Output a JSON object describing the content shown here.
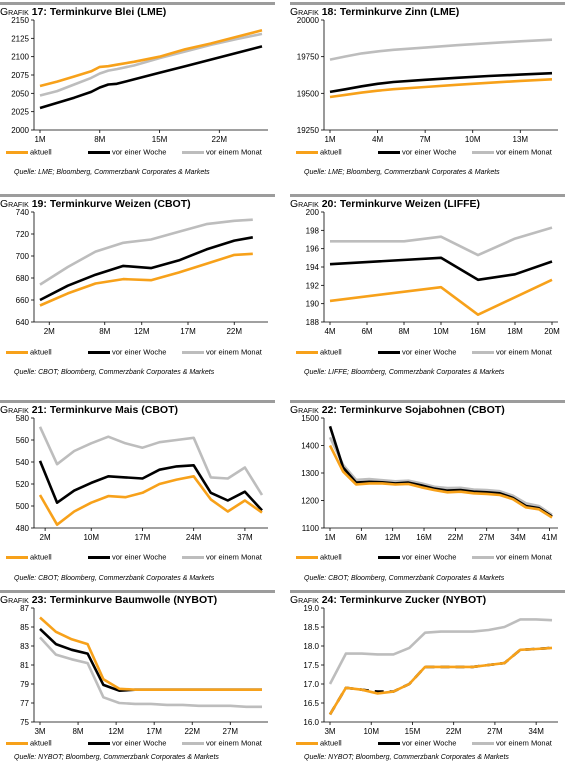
{
  "chart_data": [
    {
      "type": "line",
      "num": "17",
      "title_prefix": "Grafik",
      "title": "Terminkurve Blei (LME)",
      "source": "Quelle: LME; Bloomberg, Commerzbank Corporates & Markets",
      "categories": [
        "1M",
        "8M",
        "15M",
        "22M"
      ],
      "xrange": [
        1,
        27
      ],
      "xticks": [
        1,
        8,
        15,
        22
      ],
      "ylim": [
        2000,
        2150
      ],
      "yticks": [
        2000,
        2025,
        2050,
        2075,
        2100,
        2125,
        2150
      ],
      "series": [
        {
          "name": "aktuell",
          "color": "#f7a11a",
          "x": [
            1,
            3,
            5,
            7,
            8,
            9,
            10,
            12,
            15,
            18,
            21,
            24,
            27
          ],
          "values": [
            2060,
            2066,
            2073,
            2080,
            2086,
            2087,
            2089,
            2093,
            2100,
            2110,
            2118,
            2127,
            2136
          ]
        },
        {
          "name": "vor einer Woche",
          "color": "#000000",
          "x": [
            1,
            3,
            5,
            7,
            8,
            9,
            10,
            12,
            15,
            18,
            21,
            24,
            27
          ],
          "values": [
            2030,
            2037,
            2044,
            2052,
            2058,
            2062,
            2063,
            2069,
            2078,
            2087,
            2096,
            2105,
            2114
          ]
        },
        {
          "name": "vor einem Monat",
          "color": "#bdbdbd",
          "x": [
            1,
            3,
            5,
            7,
            8,
            9,
            10,
            12,
            15,
            18,
            21,
            24,
            27
          ],
          "values": [
            2047,
            2053,
            2062,
            2071,
            2077,
            2081,
            2083,
            2088,
            2098,
            2107,
            2116,
            2124,
            2131
          ]
        }
      ],
      "xlabel": "",
      "ylabel": "",
      "legend": "bottom"
    },
    {
      "type": "line",
      "num": "18",
      "title_prefix": "Grafik",
      "title": "Terminkurve Zinn (LME)",
      "source": "Quelle: LME; Bloomberg, Commerzbank Corporates & Markets",
      "categories": [
        "1M",
        "4M",
        "7M",
        "10M",
        "13M"
      ],
      "xrange": [
        1,
        15
      ],
      "xticks": [
        1,
        4,
        7,
        10,
        13
      ],
      "ylim": [
        19250,
        20000
      ],
      "yticks": [
        19250,
        19500,
        19750,
        20000
      ],
      "series": [
        {
          "name": "aktuell",
          "color": "#f7a11a",
          "x": [
            1,
            2,
            3,
            4,
            5,
            7,
            9,
            11,
            13,
            15
          ],
          "values": [
            19475,
            19490,
            19505,
            19518,
            19528,
            19543,
            19558,
            19572,
            19585,
            19596
          ]
        },
        {
          "name": "vor einer Woche",
          "color": "#000000",
          "x": [
            1,
            2,
            3,
            4,
            5,
            7,
            9,
            11,
            13,
            15
          ],
          "values": [
            19510,
            19528,
            19548,
            19565,
            19577,
            19592,
            19606,
            19618,
            19628,
            19637
          ]
        },
        {
          "name": "vor einem Monat",
          "color": "#bdbdbd",
          "x": [
            1,
            2,
            3,
            4,
            5,
            7,
            9,
            11,
            13,
            15
          ],
          "values": [
            19730,
            19752,
            19772,
            19786,
            19797,
            19812,
            19828,
            19842,
            19855,
            19866
          ]
        }
      ],
      "xlabel": "",
      "ylabel": "",
      "legend": "bottom"
    },
    {
      "type": "line",
      "num": "19",
      "title_prefix": "Grafik",
      "title": "Terminkurve Weizen (CBOT)",
      "source": "Quelle: CBOT; Bloomberg, Commerzbank Corporates & Markets",
      "categories": [
        "2M",
        "8M",
        "12M",
        "17M",
        "22M"
      ],
      "xrange": [
        1,
        25
      ],
      "xticks": [
        2,
        8,
        12,
        17,
        22
      ],
      "ylim": [
        640,
        740
      ],
      "yticks": [
        640,
        660,
        680,
        700,
        720,
        740
      ],
      "series": [
        {
          "name": "aktuell",
          "color": "#f7a11a",
          "x": [
            1,
            4,
            7,
            10,
            13,
            16,
            19,
            22,
            24
          ],
          "values": [
            655,
            666,
            675,
            679,
            678,
            685,
            693,
            701,
            702
          ]
        },
        {
          "name": "vor einer Woche",
          "color": "#000000",
          "x": [
            1,
            4,
            7,
            10,
            13,
            16,
            19,
            22,
            24
          ],
          "values": [
            660,
            673,
            683,
            691,
            689,
            696,
            706,
            714,
            717
          ]
        },
        {
          "name": "vor einem Monat",
          "color": "#bdbdbd",
          "x": [
            1,
            4,
            7,
            10,
            13,
            16,
            19,
            22,
            24
          ],
          "values": [
            674,
            690,
            704,
            712,
            715,
            722,
            729,
            732,
            733
          ]
        }
      ],
      "xlabel": "",
      "ylabel": "",
      "legend": "bottom"
    },
    {
      "type": "line",
      "num": "20",
      "title_prefix": "Grafik",
      "title": "Terminkurve Weizen (LIFFE)",
      "source": "Quelle: LIFFE; Bloomberg, Commerzbank Corporates & Markets",
      "categories": [
        "4M",
        "6M",
        "8M",
        "10M",
        "16M",
        "18M",
        "20M"
      ],
      "xrange": [
        0,
        6
      ],
      "xticks": [
        0,
        1,
        2,
        3,
        4,
        5,
        6
      ],
      "ylim": [
        188,
        200
      ],
      "yticks": [
        188,
        190,
        192,
        194,
        196,
        198,
        200
      ],
      "series": [
        {
          "name": "aktuell",
          "color": "#f7a11a",
          "x": [
            0,
            3,
            4,
            6
          ],
          "values": [
            190.3,
            191.8,
            188.8,
            192.6
          ]
        },
        {
          "name": "vor einer Woche",
          "color": "#000000",
          "x": [
            0,
            3,
            4,
            5,
            6
          ],
          "values": [
            194.3,
            195.0,
            192.6,
            193.2,
            194.6
          ]
        },
        {
          "name": "vor einem Monat",
          "color": "#bdbdbd",
          "x": [
            0,
            2,
            3,
            4,
            5,
            6
          ],
          "values": [
            196.8,
            196.8,
            197.3,
            195.3,
            197.1,
            198.3
          ]
        }
      ],
      "xlabel": "",
      "ylabel": "",
      "legend": "bottom"
    },
    {
      "type": "line",
      "num": "21",
      "title_prefix": "Grafik",
      "title": "Terminkurve Mais (CBOT)",
      "source": "Quelle: CBOT; Bloomberg, Commerzbank Corporates & Markets",
      "categories": [
        "2M",
        "10M",
        "17M",
        "24M",
        "37M"
      ],
      "xrange": [
        0,
        13
      ],
      "xticks": [
        0.3,
        3,
        6,
        9,
        12
      ],
      "ylim": [
        480,
        580
      ],
      "yticks": [
        480,
        500,
        520,
        540,
        560,
        580
      ],
      "series": [
        {
          "name": "aktuell",
          "color": "#f7a11a",
          "x": [
            0,
            1,
            2,
            3,
            4,
            5,
            6,
            7,
            8,
            9,
            10,
            11,
            12,
            13
          ],
          "values": [
            510,
            483,
            495,
            503,
            509,
            508,
            512,
            520,
            524,
            527,
            506,
            495,
            505,
            494
          ]
        },
        {
          "name": "vor einer Woche",
          "color": "#000000",
          "x": [
            0,
            1,
            2,
            3,
            4,
            5,
            6,
            7,
            8,
            9,
            10,
            11,
            12,
            13
          ],
          "values": [
            541,
            503,
            514,
            521,
            527,
            526,
            525,
            533,
            536,
            537,
            512,
            505,
            513,
            496
          ]
        },
        {
          "name": "vor einem Monat",
          "color": "#bdbdbd",
          "x": [
            0,
            1,
            2,
            3,
            4,
            5,
            6,
            7,
            8,
            9,
            10,
            11,
            12,
            13
          ],
          "values": [
            572,
            538,
            550,
            557,
            563,
            557,
            553,
            558,
            560,
            562,
            526,
            525,
            535,
            510
          ]
        }
      ],
      "xlabel": "",
      "ylabel": "",
      "legend": "bottom"
    },
    {
      "type": "line",
      "num": "22",
      "title_prefix": "Grafik",
      "title": "Terminkurve Sojabohnen (CBOT)",
      "source": "Quelle: CBOT; Bloomberg, Commerzbank Corporates & Markets",
      "categories": [
        "1M",
        "6M",
        "12M",
        "16M",
        "22M",
        "27M",
        "34M",
        "41M"
      ],
      "xrange": [
        0,
        17
      ],
      "xticks": [
        0,
        2.4,
        4.8,
        7.2,
        9.6,
        12,
        14.4,
        16.8
      ],
      "ylim": [
        1100,
        1500
      ],
      "yticks": [
        1100,
        1200,
        1300,
        1400,
        1500
      ],
      "series": [
        {
          "name": "aktuell",
          "color": "#f7a11a",
          "x": [
            0,
            1,
            2,
            3,
            4,
            5,
            6,
            7,
            8,
            9,
            10,
            11,
            12,
            13,
            14,
            15,
            16,
            17
          ],
          "values": [
            1400,
            1305,
            1258,
            1262,
            1262,
            1258,
            1260,
            1248,
            1238,
            1230,
            1232,
            1226,
            1224,
            1220,
            1205,
            1175,
            1168,
            1138
          ]
        },
        {
          "name": "vor einer Woche",
          "color": "#000000",
          "x": [
            0,
            1,
            2,
            3,
            4,
            5,
            6,
            7,
            8,
            9,
            10,
            11,
            12,
            13,
            14,
            15,
            16,
            17
          ],
          "values": [
            1470,
            1320,
            1265,
            1268,
            1266,
            1262,
            1265,
            1255,
            1243,
            1236,
            1238,
            1232,
            1230,
            1226,
            1210,
            1180,
            1172,
            1142
          ]
        },
        {
          "name": "vor einem Monat",
          "color": "#bdbdbd",
          "x": [
            0,
            1,
            2,
            3,
            4,
            5,
            6,
            7,
            8,
            9,
            10,
            11,
            12,
            13,
            14,
            15,
            16,
            17
          ],
          "values": [
            1430,
            1330,
            1275,
            1278,
            1274,
            1270,
            1272,
            1262,
            1250,
            1245,
            1246,
            1240,
            1238,
            1234,
            1218,
            1190,
            1180,
            1148
          ]
        }
      ],
      "xlabel": "",
      "ylabel": "",
      "legend": "bottom"
    },
    {
      "type": "line",
      "num": "23",
      "title_prefix": "Grafik",
      "title": "Terminkurve Baumwolle (NYBOT)",
      "source": "Quelle: NYBOT; Bloomberg, Commerzbank Corporates & Markets",
      "categories": [
        "3M",
        "8M",
        "12M",
        "17M",
        "22M",
        "27M"
      ],
      "xrange": [
        0,
        14
      ],
      "xticks": [
        0,
        2.4,
        4.8,
        7.2,
        9.6,
        12
      ],
      "ylim": [
        75,
        87
      ],
      "yticks": [
        75,
        77,
        79,
        81,
        83,
        85,
        87
      ],
      "series": [
        {
          "name": "aktuell",
          "color": "#f7a11a",
          "x": [
            0,
            1,
            2,
            3,
            4,
            5,
            6,
            7,
            8,
            9,
            10,
            11,
            12,
            13,
            14
          ],
          "values": [
            86.0,
            84.5,
            83.7,
            83.2,
            79.5,
            78.5,
            78.4,
            78.4,
            78.4,
            78.4,
            78.4,
            78.4,
            78.4,
            78.4,
            78.4
          ]
        },
        {
          "name": "vor einer Woche",
          "color": "#000000",
          "x": [
            0,
            1,
            2,
            3,
            4,
            5,
            6,
            7,
            8,
            9,
            10,
            11,
            12,
            13,
            14
          ],
          "values": [
            84.8,
            83.2,
            82.6,
            82.2,
            78.9,
            78.3,
            78.4,
            78.4,
            78.4,
            78.4,
            78.4,
            78.4,
            78.4,
            78.4,
            78.4
          ]
        },
        {
          "name": "vor einem Monat",
          "color": "#bdbdbd",
          "x": [
            0,
            1,
            2,
            3,
            4,
            5,
            6,
            7,
            8,
            9,
            10,
            11,
            12,
            13,
            14
          ],
          "values": [
            83.9,
            82.1,
            81.6,
            81.2,
            77.6,
            77.0,
            76.9,
            76.9,
            76.8,
            76.8,
            76.7,
            76.7,
            76.7,
            76.6,
            76.6
          ]
        }
      ],
      "xlabel": "",
      "ylabel": "",
      "legend": "bottom"
    },
    {
      "type": "line",
      "num": "24",
      "title_prefix": "Grafik",
      "title": "Terminkurve Zucker (NYBOT)",
      "source": "Quelle: NYBOT; Bloomberg, Commerzbank Corporates & Markets",
      "categories": [
        "3M",
        "10M",
        "15M",
        "22M",
        "27M",
        "34M"
      ],
      "xrange": [
        0,
        14
      ],
      "xticks": [
        0,
        2.6,
        5.2,
        7.8,
        10.4,
        13
      ],
      "ylim": [
        16.0,
        19.0
      ],
      "yticks": [
        16.0,
        16.5,
        17.0,
        17.5,
        18.0,
        18.5,
        19.0
      ],
      "series": [
        {
          "name": "aktuell",
          "color": "#f7a11a",
          "x": [
            0,
            1,
            2,
            3,
            4,
            5,
            6,
            7,
            8,
            9,
            10,
            11,
            12,
            13,
            14
          ],
          "values": [
            16.2,
            16.9,
            16.85,
            16.75,
            16.8,
            17.0,
            17.45,
            17.45,
            17.45,
            17.45,
            17.5,
            17.55,
            17.9,
            17.92,
            17.95
          ]
        },
        {
          "name": "vor einer Woche",
          "color": "#000000",
          "x": [
            0,
            1,
            2,
            3,
            4,
            5,
            6,
            7,
            8,
            9,
            10,
            11,
            12,
            13,
            14
          ],
          "values": [
            16.2,
            16.9,
            16.85,
            16.8,
            16.8,
            17.0,
            17.45,
            17.45,
            17.45,
            17.45,
            17.5,
            17.55,
            17.9,
            17.92,
            17.95
          ]
        },
        {
          "name": "vor einem Monat",
          "color": "#bdbdbd",
          "x": [
            0,
            1,
            2,
            3,
            4,
            5,
            6,
            7,
            8,
            9,
            10,
            11,
            12,
            13,
            14
          ],
          "values": [
            17.0,
            17.8,
            17.8,
            17.78,
            17.78,
            17.95,
            18.35,
            18.38,
            18.38,
            18.38,
            18.42,
            18.5,
            18.7,
            18.7,
            18.68
          ]
        }
      ],
      "xlabel": "",
      "ylabel": "",
      "legend": "bottom"
    }
  ]
}
